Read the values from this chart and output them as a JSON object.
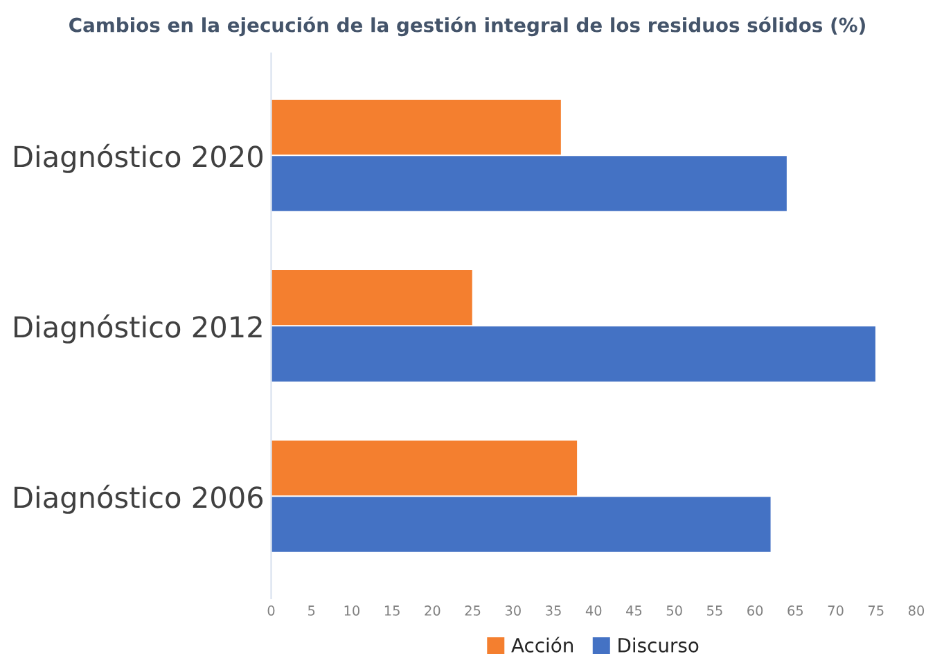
{
  "chart_data": {
    "type": "bar",
    "orientation": "horizontal",
    "title": "Cambios en la ejecución de la gestión integral de los residuos sólidos (%)",
    "categories": [
      "Diagnóstico 2020",
      "Diagnóstico 2012",
      "Diagnóstico 2006"
    ],
    "series": [
      {
        "name": "Acción",
        "color": "#f47f2f",
        "values": [
          36,
          25,
          38
        ]
      },
      {
        "name": "Discurso",
        "color": "#4472c4",
        "values": [
          64,
          75,
          62
        ]
      }
    ],
    "xlim": [
      0,
      80
    ],
    "xticks": [
      0,
      5,
      10,
      15,
      20,
      25,
      30,
      35,
      40,
      45,
      50,
      55,
      60,
      65,
      70,
      75,
      80
    ],
    "grid": false,
    "legend": "bottom"
  }
}
